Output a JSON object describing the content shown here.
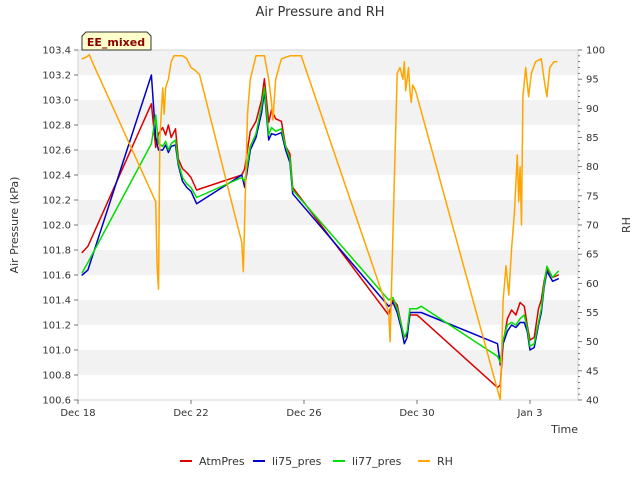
{
  "chart_data": {
    "type": "line",
    "title": "Air Pressure and RH",
    "badge": "EE_mixed",
    "xlabel": "Time",
    "ylabel": "Air Pressure (kPa)",
    "y2label": "RH",
    "x_unit": "days since Dec 18",
    "xlim": [
      0,
      17.7
    ],
    "ylim": [
      100.6,
      103.4
    ],
    "y2lim": [
      40,
      100
    ],
    "x_ticks": [
      {
        "x": 0,
        "label": "Dec 18"
      },
      {
        "x": 4,
        "label": "Dec 22"
      },
      {
        "x": 8,
        "label": "Dec 26"
      },
      {
        "x": 12,
        "label": "Dec 30"
      },
      {
        "x": 16,
        "label": "Jan 3"
      }
    ],
    "y_ticks": [
      "100.6",
      "100.8",
      "101.0",
      "101.2",
      "101.4",
      "101.6",
      "101.8",
      "102.0",
      "102.2",
      "102.4",
      "102.6",
      "102.8",
      "103.0",
      "103.2",
      "103.4"
    ],
    "y2_ticks": [
      "40",
      "45",
      "50",
      "55",
      "60",
      "65",
      "70",
      "75",
      "80",
      "85",
      "90",
      "95",
      "100"
    ],
    "grid": "horizontal alternating bands",
    "legend_position": "bottom",
    "series": [
      {
        "name": "AtmPres",
        "axis": "left",
        "color": "#dd0000",
        "points": [
          [
            0.15,
            101.78
          ],
          [
            0.35,
            101.83
          ],
          [
            2.6,
            102.97
          ],
          [
            2.75,
            102.62
          ],
          [
            2.85,
            102.73
          ],
          [
            3.0,
            102.78
          ],
          [
            3.1,
            102.72
          ],
          [
            3.2,
            102.8
          ],
          [
            3.3,
            102.7
          ],
          [
            3.45,
            102.77
          ],
          [
            3.55,
            102.53
          ],
          [
            3.7,
            102.45
          ],
          [
            3.85,
            102.42
          ],
          [
            4.0,
            102.38
          ],
          [
            4.2,
            102.28
          ],
          [
            5.8,
            102.4
          ],
          [
            5.9,
            102.45
          ],
          [
            6.1,
            102.75
          ],
          [
            6.3,
            102.83
          ],
          [
            6.5,
            103.0
          ],
          [
            6.6,
            103.17
          ],
          [
            6.75,
            102.82
          ],
          [
            6.85,
            102.92
          ],
          [
            7.0,
            102.85
          ],
          [
            7.2,
            102.83
          ],
          [
            7.35,
            102.63
          ],
          [
            7.5,
            102.57
          ],
          [
            7.6,
            102.3
          ],
          [
            11.0,
            101.28
          ],
          [
            11.15,
            101.4
          ],
          [
            11.3,
            101.36
          ],
          [
            11.45,
            101.2
          ],
          [
            11.55,
            101.1
          ],
          [
            11.65,
            101.12
          ],
          [
            11.75,
            101.28
          ],
          [
            12.0,
            101.28
          ],
          [
            12.15,
            101.25
          ],
          [
            14.85,
            100.7
          ],
          [
            14.95,
            100.72
          ],
          [
            15.05,
            101.05
          ],
          [
            15.2,
            101.25
          ],
          [
            15.35,
            101.32
          ],
          [
            15.5,
            101.28
          ],
          [
            15.65,
            101.38
          ],
          [
            15.8,
            101.35
          ],
          [
            15.9,
            101.2
          ],
          [
            16.0,
            101.08
          ],
          [
            16.15,
            101.1
          ],
          [
            16.3,
            101.33
          ],
          [
            16.4,
            101.4
          ],
          [
            16.5,
            101.55
          ],
          [
            16.6,
            101.65
          ],
          [
            16.8,
            101.58
          ],
          [
            17.0,
            101.6
          ]
        ]
      },
      {
        "name": "li75_pres",
        "axis": "left",
        "color": "#0000cc",
        "points": [
          [
            0.15,
            101.6
          ],
          [
            0.35,
            101.64
          ],
          [
            2.6,
            103.2
          ],
          [
            2.75,
            102.7
          ],
          [
            2.85,
            102.6
          ],
          [
            3.0,
            102.6
          ],
          [
            3.1,
            102.64
          ],
          [
            3.2,
            102.58
          ],
          [
            3.3,
            102.63
          ],
          [
            3.45,
            102.64
          ],
          [
            3.55,
            102.48
          ],
          [
            3.7,
            102.35
          ],
          [
            3.85,
            102.3
          ],
          [
            4.0,
            102.27
          ],
          [
            4.2,
            102.17
          ],
          [
            5.8,
            102.4
          ],
          [
            5.9,
            102.3
          ],
          [
            6.1,
            102.6
          ],
          [
            6.3,
            102.7
          ],
          [
            6.5,
            102.9
          ],
          [
            6.6,
            103.07
          ],
          [
            6.75,
            102.68
          ],
          [
            6.85,
            102.73
          ],
          [
            7.0,
            102.72
          ],
          [
            7.2,
            102.74
          ],
          [
            7.35,
            102.6
          ],
          [
            7.5,
            102.5
          ],
          [
            7.6,
            102.25
          ],
          [
            11.0,
            101.35
          ],
          [
            11.15,
            101.38
          ],
          [
            11.3,
            101.3
          ],
          [
            11.45,
            101.17
          ],
          [
            11.55,
            101.05
          ],
          [
            11.65,
            101.1
          ],
          [
            11.75,
            101.3
          ],
          [
            12.0,
            101.3
          ],
          [
            12.15,
            101.3
          ],
          [
            14.85,
            101.05
          ],
          [
            14.95,
            100.88
          ],
          [
            15.05,
            101.05
          ],
          [
            15.2,
            101.15
          ],
          [
            15.35,
            101.2
          ],
          [
            15.5,
            101.18
          ],
          [
            15.65,
            101.22
          ],
          [
            15.8,
            101.22
          ],
          [
            15.9,
            101.15
          ],
          [
            16.0,
            101.0
          ],
          [
            16.15,
            101.02
          ],
          [
            16.3,
            101.2
          ],
          [
            16.4,
            101.3
          ],
          [
            16.5,
            101.5
          ],
          [
            16.6,
            101.63
          ],
          [
            16.8,
            101.55
          ],
          [
            17.0,
            101.57
          ]
        ]
      },
      {
        "name": "li77_pres",
        "axis": "left",
        "color": "#00dd00",
        "points": [
          [
            0.15,
            101.62
          ],
          [
            0.35,
            101.7
          ],
          [
            2.6,
            102.65
          ],
          [
            2.75,
            102.88
          ],
          [
            2.85,
            102.65
          ],
          [
            3.0,
            102.63
          ],
          [
            3.1,
            102.67
          ],
          [
            3.2,
            102.6
          ],
          [
            3.3,
            102.65
          ],
          [
            3.45,
            102.68
          ],
          [
            3.55,
            102.5
          ],
          [
            3.7,
            102.38
          ],
          [
            3.85,
            102.33
          ],
          [
            4.0,
            102.3
          ],
          [
            4.2,
            102.22
          ],
          [
            5.8,
            102.38
          ],
          [
            5.9,
            102.35
          ],
          [
            6.1,
            102.63
          ],
          [
            6.3,
            102.73
          ],
          [
            6.5,
            102.95
          ],
          [
            6.6,
            103.1
          ],
          [
            6.75,
            102.72
          ],
          [
            6.85,
            102.78
          ],
          [
            7.0,
            102.75
          ],
          [
            7.2,
            102.77
          ],
          [
            7.35,
            102.63
          ],
          [
            7.5,
            102.53
          ],
          [
            7.6,
            102.28
          ],
          [
            11.0,
            101.4
          ],
          [
            11.15,
            101.42
          ],
          [
            11.3,
            101.33
          ],
          [
            11.45,
            101.2
          ],
          [
            11.55,
            101.1
          ],
          [
            11.65,
            101.15
          ],
          [
            11.75,
            101.33
          ],
          [
            12.0,
            101.33
          ],
          [
            12.15,
            101.35
          ],
          [
            14.85,
            100.95
          ],
          [
            14.95,
            100.9
          ],
          [
            15.05,
            101.08
          ],
          [
            15.2,
            101.2
          ],
          [
            15.35,
            101.22
          ],
          [
            15.5,
            101.2
          ],
          [
            15.65,
            101.25
          ],
          [
            15.8,
            101.28
          ],
          [
            15.9,
            101.18
          ],
          [
            16.0,
            101.03
          ],
          [
            16.15,
            101.05
          ],
          [
            16.3,
            101.22
          ],
          [
            16.4,
            101.33
          ],
          [
            16.5,
            101.52
          ],
          [
            16.6,
            101.67
          ],
          [
            16.8,
            101.58
          ],
          [
            17.0,
            101.63
          ]
        ]
      },
      {
        "name": "RH",
        "axis": "right",
        "color": "#ffa500",
        "points": [
          [
            0.15,
            98.5
          ],
          [
            0.3,
            98.8
          ],
          [
            0.4,
            99.2
          ],
          [
            0.55,
            97.5
          ],
          [
            2.75,
            74
          ],
          [
            2.8,
            63
          ],
          [
            2.85,
            59
          ],
          [
            2.9,
            85
          ],
          [
            3.0,
            93.5
          ],
          [
            3.05,
            89
          ],
          [
            3.1,
            93.5
          ],
          [
            3.2,
            95
          ],
          [
            3.3,
            98
          ],
          [
            3.4,
            99
          ],
          [
            3.7,
            99
          ],
          [
            3.85,
            98.5
          ],
          [
            4.0,
            97
          ],
          [
            4.15,
            96.5
          ],
          [
            4.3,
            95.8
          ],
          [
            5.8,
            67
          ],
          [
            5.85,
            62
          ],
          [
            6.0,
            89
          ],
          [
            6.1,
            95
          ],
          [
            6.3,
            99
          ],
          [
            6.6,
            99
          ],
          [
            6.75,
            95
          ],
          [
            6.85,
            91
          ],
          [
            6.9,
            88
          ],
          [
            7.0,
            95
          ],
          [
            7.2,
            98.5
          ],
          [
            7.5,
            99
          ],
          [
            7.9,
            99
          ],
          [
            11.0,
            55
          ],
          [
            11.05,
            50
          ],
          [
            11.2,
            78
          ],
          [
            11.3,
            96
          ],
          [
            11.4,
            97
          ],
          [
            11.5,
            95
          ],
          [
            11.55,
            98
          ],
          [
            11.6,
            93
          ],
          [
            11.7,
            97
          ],
          [
            11.75,
            93
          ],
          [
            11.8,
            91
          ],
          [
            11.85,
            94
          ],
          [
            11.95,
            93
          ],
          [
            14.95,
            40
          ],
          [
            15.05,
            57
          ],
          [
            15.15,
            63
          ],
          [
            15.25,
            58
          ],
          [
            15.35,
            66
          ],
          [
            15.45,
            72
          ],
          [
            15.55,
            82
          ],
          [
            15.6,
            74
          ],
          [
            15.65,
            80
          ],
          [
            15.7,
            70
          ],
          [
            15.75,
            92
          ],
          [
            15.85,
            97
          ],
          [
            15.95,
            92
          ],
          [
            16.05,
            96
          ],
          [
            16.2,
            98
          ],
          [
            16.4,
            98.5
          ],
          [
            16.5,
            95
          ],
          [
            16.6,
            92
          ],
          [
            16.7,
            97
          ],
          [
            16.85,
            98
          ],
          [
            16.95,
            98
          ]
        ]
      }
    ]
  }
}
